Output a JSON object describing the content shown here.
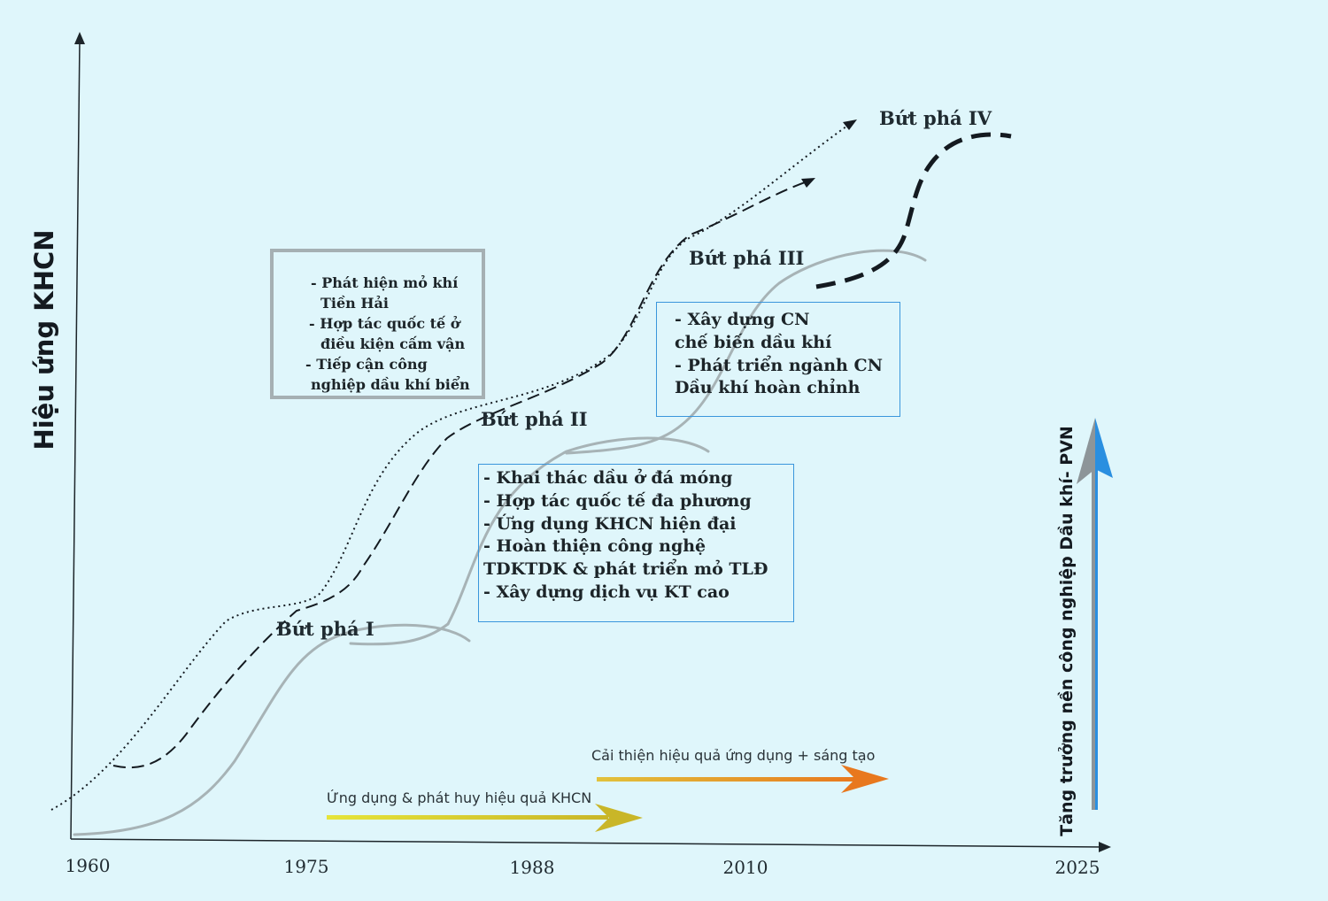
{
  "axes": {
    "y_label": "Hiệu ứng KHCN",
    "x_ticks": [
      "1960",
      "1975",
      "1988",
      "2010",
      "2025"
    ]
  },
  "right_arrow": {
    "label": "Tăng trưởng nền công nghiệp Dầu khí- PVN",
    "colors": {
      "gray": "#8d9599",
      "blue": "#2a8fe0"
    }
  },
  "phases": [
    "Bứt phá I",
    "Bứt phá II",
    "Bứt phá III",
    "Bứt phá IV"
  ],
  "boxes": {
    "phase_1": [
      "- Phát hiện mỏ khí",
      "Tiền Hải",
      "- Hợp tác quốc tế ở",
      "điều kiện cấm vận",
      "- Tiếp cận công",
      "nghiệp dầu khí biển"
    ],
    "phase_2": [
      "- Khai thác dầu ở đá móng",
      "- Hợp tác quốc tế đa phương",
      "- Ứng dụng KHCN hiện đại",
      "- Hoàn thiện công nghệ",
      "TDKTDK & phát triển mỏ TLĐ",
      "- Xây dựng dịch vụ KT cao"
    ],
    "phase_3": [
      "- Xây dựng CN",
      "chế biến dầu khí",
      "- Phát triển ngành CN",
      "Dầu khí hoàn chỉnh"
    ]
  },
  "progress_arrows": [
    {
      "label": "Ứng dụng & phát huy hiệu quả KHCN",
      "colors": [
        "#e6e43a",
        "#c9b628"
      ]
    },
    {
      "label": "Cải thiện hiệu quả ứng dụng + sáng tạo",
      "colors": [
        "#e2c23c",
        "#e8781e"
      ]
    }
  ],
  "colors": {
    "background": "#dff6fb",
    "gray_box_border": "#a5b0b3",
    "blue_box_border": "#3a96dc",
    "s_curve": "#a7b3b6"
  }
}
